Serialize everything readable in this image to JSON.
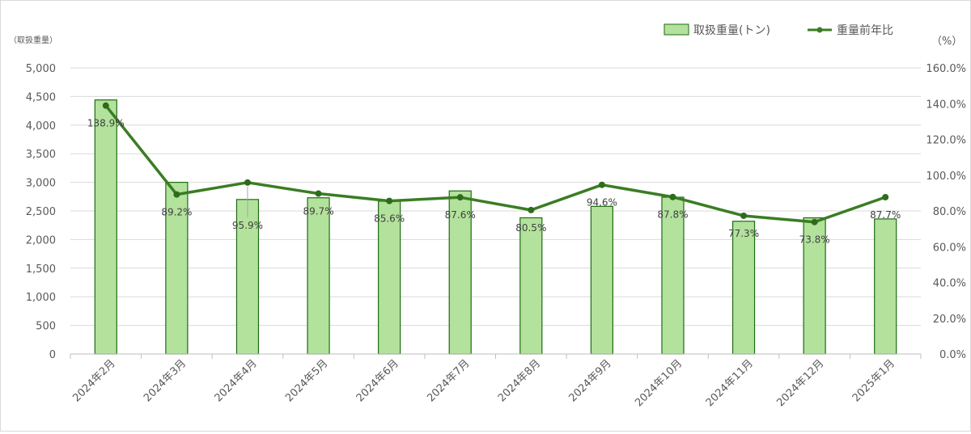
{
  "chart_data": {
    "type": "bar",
    "left_axis_unit_label": "（取扱重量）",
    "right_axis_unit_label": "（%）",
    "categories": [
      "2024年2月",
      "2024年3月",
      "2024年4月",
      "2024年5月",
      "2024年6月",
      "2024年7月",
      "2024年8月",
      "2024年9月",
      "2024年10月",
      "2024年11月",
      "2024年12月",
      "2025年1月"
    ],
    "series": [
      {
        "name": "取扱重量(トン)",
        "type": "bar",
        "axis": "left",
        "values": [
          4440,
          3000,
          2700,
          2730,
          2670,
          2850,
          2380,
          2580,
          2740,
          2320,
          2380,
          2360
        ],
        "color": "#b3e29d",
        "stroke": "#1e6b12"
      },
      {
        "name": "重量前年比",
        "type": "line",
        "axis": "right",
        "values": [
          138.9,
          89.2,
          95.9,
          89.7,
          85.6,
          87.6,
          80.5,
          94.6,
          87.8,
          77.3,
          73.8,
          87.7
        ],
        "labels": [
          "138.9%",
          "89.2%",
          "95.9%",
          "89.7%",
          "85.6%",
          "87.6%",
          "80.5%",
          "94.6%",
          "87.8%",
          "77.3%",
          "73.8%",
          "87.7%"
        ],
        "color": "#3a7d23"
      }
    ],
    "left_axis": {
      "min": 0,
      "max": 5000,
      "step": 500,
      "tick_labels": [
        "0",
        "500",
        "1,000",
        "1,500",
        "2,000",
        "2,500",
        "3,000",
        "3,500",
        "4,000",
        "4,500",
        "5,000"
      ]
    },
    "right_axis": {
      "min": 0,
      "max": 160,
      "step": 20,
      "tick_labels": [
        "0.0%",
        "20.0%",
        "40.0%",
        "60.0%",
        "80.0%",
        "100.0%",
        "120.0%",
        "140.0%",
        "160.0%"
      ]
    },
    "grid": true,
    "legend_position": "top-right"
  }
}
